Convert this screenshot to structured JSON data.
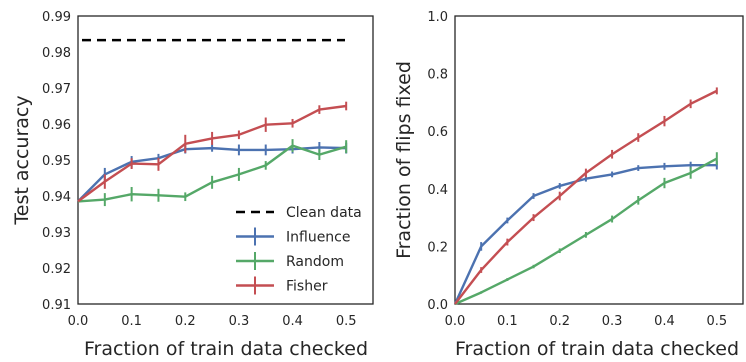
{
  "colors": {
    "influence": "#4c72b0",
    "random": "#55a868",
    "fisher": "#c44e52",
    "clean": "#000000"
  },
  "chart_data": [
    {
      "type": "line",
      "xlabel": "Fraction of train data checked",
      "ylabel": "Test accuracy",
      "xlim": [
        0.0,
        0.55
      ],
      "ylim": [
        0.91,
        0.99
      ],
      "x_ticks": [
        "0.0",
        "0.1",
        "0.2",
        "0.3",
        "0.4",
        "0.5"
      ],
      "x_tick_values": [
        0.0,
        0.1,
        0.2,
        0.3,
        0.4,
        0.5
      ],
      "y_ticks": [
        "0.91",
        "0.92",
        "0.93",
        "0.94",
        "0.95",
        "0.96",
        "0.97",
        "0.98",
        "0.99"
      ],
      "y_tick_values": [
        0.91,
        0.92,
        0.93,
        0.94,
        0.95,
        0.96,
        0.97,
        0.98,
        0.99
      ],
      "grid": false,
      "legend_position": "lower-right",
      "x": [
        0.0,
        0.05,
        0.1,
        0.15,
        0.2,
        0.25,
        0.3,
        0.35,
        0.4,
        0.45,
        0.5
      ],
      "series": [
        {
          "name": "Influence",
          "color_key": "influence",
          "values": [
            0.9385,
            0.946,
            0.9495,
            0.9505,
            0.953,
            0.9533,
            0.9528,
            0.9528,
            0.953,
            0.9535,
            0.9533
          ],
          "errors": [
            0.0,
            0.0018,
            0.0016,
            0.0012,
            0.0012,
            0.001,
            0.0015,
            0.0015,
            0.0012,
            0.0015,
            0.0015
          ]
        },
        {
          "name": "Random",
          "color_key": "random",
          "values": [
            0.9385,
            0.939,
            0.9405,
            0.9402,
            0.9398,
            0.9438,
            0.946,
            0.9485,
            0.954,
            0.9515,
            0.9537
          ],
          "errors": [
            0.0,
            0.0018,
            0.002,
            0.0018,
            0.0012,
            0.0018,
            0.0018,
            0.0012,
            0.0018,
            0.0015,
            0.0018
          ]
        },
        {
          "name": "Fisher",
          "color_key": "fisher",
          "values": [
            0.9385,
            0.944,
            0.949,
            0.9488,
            0.9545,
            0.956,
            0.957,
            0.9598,
            0.9602,
            0.964,
            0.965
          ],
          "errors": [
            0.0,
            0.002,
            0.0015,
            0.0018,
            0.0025,
            0.0018,
            0.0012,
            0.002,
            0.0012,
            0.0012,
            0.0012
          ]
        }
      ],
      "reference_line": {
        "name": "Clean data",
        "y": 0.9833
      }
    },
    {
      "type": "line",
      "xlabel": "Fraction of train data checked",
      "ylabel": "Fraction of flips fixed",
      "xlim": [
        0.0,
        0.55
      ],
      "ylim": [
        0.0,
        1.0
      ],
      "x_ticks": [
        "0.0",
        "0.1",
        "0.2",
        "0.3",
        "0.4",
        "0.5"
      ],
      "x_tick_values": [
        0.0,
        0.1,
        0.2,
        0.3,
        0.4,
        0.5
      ],
      "y_ticks": [
        "0.0",
        "0.2",
        "0.4",
        "0.6",
        "0.8",
        "1.0"
      ],
      "y_tick_values": [
        0.0,
        0.2,
        0.4,
        0.6,
        0.8,
        1.0
      ],
      "grid": false,
      "x": [
        0.0,
        0.05,
        0.1,
        0.15,
        0.2,
        0.25,
        0.3,
        0.35,
        0.4,
        0.45,
        0.5
      ],
      "series": [
        {
          "name": "Influence",
          "color_key": "influence",
          "values": [
            0.0,
            0.2,
            0.29,
            0.375,
            0.41,
            0.435,
            0.45,
            0.472,
            0.478,
            0.482,
            0.482
          ],
          "errors": [
            0.0,
            0.015,
            0.01,
            0.01,
            0.01,
            0.01,
            0.01,
            0.01,
            0.012,
            0.012,
            0.015
          ]
        },
        {
          "name": "Random",
          "color_key": "random",
          "values": [
            0.0,
            0.04,
            0.085,
            0.13,
            0.185,
            0.24,
            0.295,
            0.36,
            0.42,
            0.455,
            0.505
          ],
          "errors": [
            0.0,
            0.004,
            0.005,
            0.006,
            0.008,
            0.01,
            0.012,
            0.015,
            0.018,
            0.02,
            0.022
          ]
        },
        {
          "name": "Fisher",
          "color_key": "fisher",
          "values": [
            0.0,
            0.118,
            0.215,
            0.3,
            0.375,
            0.455,
            0.52,
            0.578,
            0.635,
            0.695,
            0.74
          ],
          "errors": [
            0.0,
            0.01,
            0.012,
            0.012,
            0.015,
            0.015,
            0.015,
            0.015,
            0.018,
            0.015,
            0.012
          ]
        }
      ]
    }
  ]
}
